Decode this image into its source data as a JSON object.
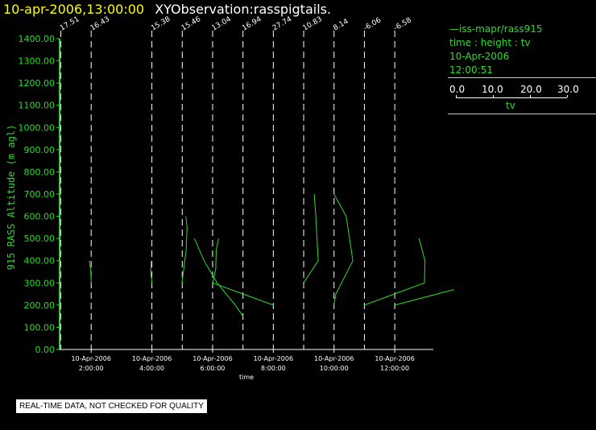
{
  "header": {
    "datetime": "10-apr-2006,13:00:00",
    "title": "XYObservation:rasspigtails."
  },
  "legend": {
    "series_line": "—iss-mapr/rass915",
    "variables": "time : height : tv",
    "date": "10-Apr-2006",
    "time": "12:00:51",
    "scale_ticks": [
      "0.0",
      "10.0",
      "20.0",
      "30.0"
    ],
    "scale_name": "tv"
  },
  "disclaimer": "REAL-TIME DATA, NOT CHECKED FOR QUALITY",
  "colors": {
    "axis": "#2bdc2b",
    "trace": "#2bdc2b",
    "ref_line": "#ffffff",
    "title_time": "#ffff00"
  },
  "chart_data": {
    "type": "line",
    "title": "XYObservation:rasspigtails.",
    "xlabel": "time",
    "ylabel": "915 RASS Altitude (m agl)",
    "ylim": [
      0,
      1400
    ],
    "xlim_hours": [
      0.96,
      13.27
    ],
    "yticks": [
      "0.00",
      "100.00",
      "200.00",
      "300.00",
      "400.00",
      "500.00",
      "600.00",
      "700.00",
      "800.00",
      "900.00",
      "1000.00",
      "1100.00",
      "1200.00",
      "1300.00",
      "1400.00"
    ],
    "xticks": [
      {
        "hour": 2,
        "date": "10-Apr-2006",
        "time": "2:00:00"
      },
      {
        "hour": 4,
        "date": "10-Apr-2006",
        "time": "4:00:00"
      },
      {
        "hour": 6,
        "date": "10-Apr-2006",
        "time": "6:00:00"
      },
      {
        "hour": 8,
        "date": "10-Apr-2006",
        "time": "8:00:00"
      },
      {
        "hour": 10,
        "date": "10-Apr-2006",
        "time": "10:00:00"
      },
      {
        "hour": 12,
        "date": "10-Apr-2006",
        "time": "12:00:00"
      }
    ],
    "grid": false,
    "tv_scale_hours_per_unit": 0.0333,
    "profiles": [
      {
        "hour": 1.0,
        "label": "17.51",
        "points": []
      },
      {
        "hour": 2.0,
        "label": "16.43",
        "points": [
          [
            -1.8,
            400
          ],
          [
            -0.3,
            350
          ],
          [
            0,
            300
          ]
        ]
      },
      {
        "hour": 4.0,
        "label": "15.38",
        "points": [
          [
            -0.6,
            400
          ],
          [
            -1.2,
            350
          ],
          [
            0,
            300
          ]
        ]
      },
      {
        "hour": 5.0,
        "label": "15.46",
        "points": [
          [
            -0.3,
            300
          ],
          [
            3.9,
            450
          ],
          [
            4.8,
            550
          ],
          [
            3.6,
            600
          ]
        ]
      },
      {
        "hour": 6.0,
        "label": "13.04",
        "points": [
          [
            -18,
            500
          ],
          [
            -8.5,
            400
          ],
          [
            4.5,
            300
          ],
          [
            22.5,
            200
          ],
          [
            30,
            150
          ]
        ]
      },
      {
        "hour": 7.0,
        "label": "16.94",
        "points": [
          [
            -30,
            300
          ],
          [
            -27,
            360
          ],
          [
            -26.4,
            450
          ],
          [
            -24,
            500
          ]
        ]
      },
      {
        "hour": 8.0,
        "label": "27.74",
        "points": [
          [
            -60,
            300
          ],
          [
            -30,
            250
          ],
          [
            0,
            200
          ]
        ]
      },
      {
        "hour": 9.0,
        "label": "10.83",
        "points": [
          [
            0,
            300
          ],
          [
            14.4,
            400
          ],
          [
            12,
            600
          ],
          [
            10.5,
            700
          ]
        ]
      },
      {
        "hour": 10.0,
        "label": "8.14",
        "points": [
          [
            0,
            200
          ],
          [
            1.8,
            250
          ],
          [
            18.6,
            400
          ],
          [
            12,
            600
          ],
          [
            0,
            700
          ]
        ]
      },
      {
        "hour": 11.0,
        "label": "-6.06",
        "points": [
          [
            0,
            200
          ],
          [
            59.4,
            300
          ],
          [
            60,
            400
          ],
          [
            54,
            500
          ]
        ]
      },
      {
        "hour": 12.0,
        "label": "-6.58",
        "points": [
          [
            0,
            200
          ],
          [
            58.5,
            270
          ]
        ]
      }
    ]
  }
}
